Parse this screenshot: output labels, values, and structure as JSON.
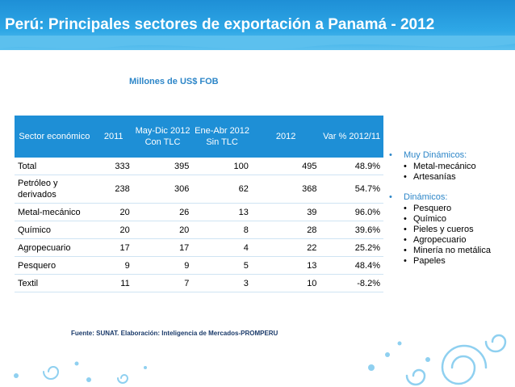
{
  "header": {
    "title": "Perú: Principales sectores de exportación a Panamá - 2012"
  },
  "subtitle": "Millones de US$ FOB",
  "table": {
    "headers": [
      "Sector económico",
      "2011",
      "May-Dic 2012 Con TLC",
      "Ene-Abr 2012 Sin TLC",
      "2012",
      "Var % 2012/11"
    ],
    "rows": [
      [
        "Total",
        "333",
        "395",
        "100",
        "495",
        "48.9%"
      ],
      [
        "Petróleo y derivados",
        "238",
        "306",
        "62",
        "368",
        "54.7%"
      ],
      [
        "Metal-mecánico",
        "20",
        "26",
        "13",
        "39",
        "96.0%"
      ],
      [
        "Químico",
        "20",
        "20",
        "8",
        "28",
        "39.6%"
      ],
      [
        "Agropecuario",
        "17",
        "17",
        "4",
        "22",
        "25.2%"
      ],
      [
        "Pesquero",
        "9",
        "9",
        "5",
        "13",
        "48.4%"
      ],
      [
        "Textil",
        "11",
        "7",
        "3",
        "10",
        "-8.2%"
      ]
    ]
  },
  "sidebar": {
    "groups": [
      {
        "label": "Muy Dinámicos:",
        "items": [
          "Metal-mecánico",
          "Artesanías"
        ]
      },
      {
        "label": "Dinámicos:",
        "items": [
          "Pesquero",
          "Químico",
          "Pieles y cueros",
          "Agropecuario",
          "Minería no metálica",
          "Papeles"
        ]
      }
    ]
  },
  "footer": {
    "source": "Fuente: SUNAT.  Elaboración: Inteligencia de Mercados-PROMPERU"
  },
  "colors": {
    "header_blue": "#1e8fd6",
    "accent_blue": "#2d86c8",
    "deco_blue": "#8fd0f0"
  }
}
